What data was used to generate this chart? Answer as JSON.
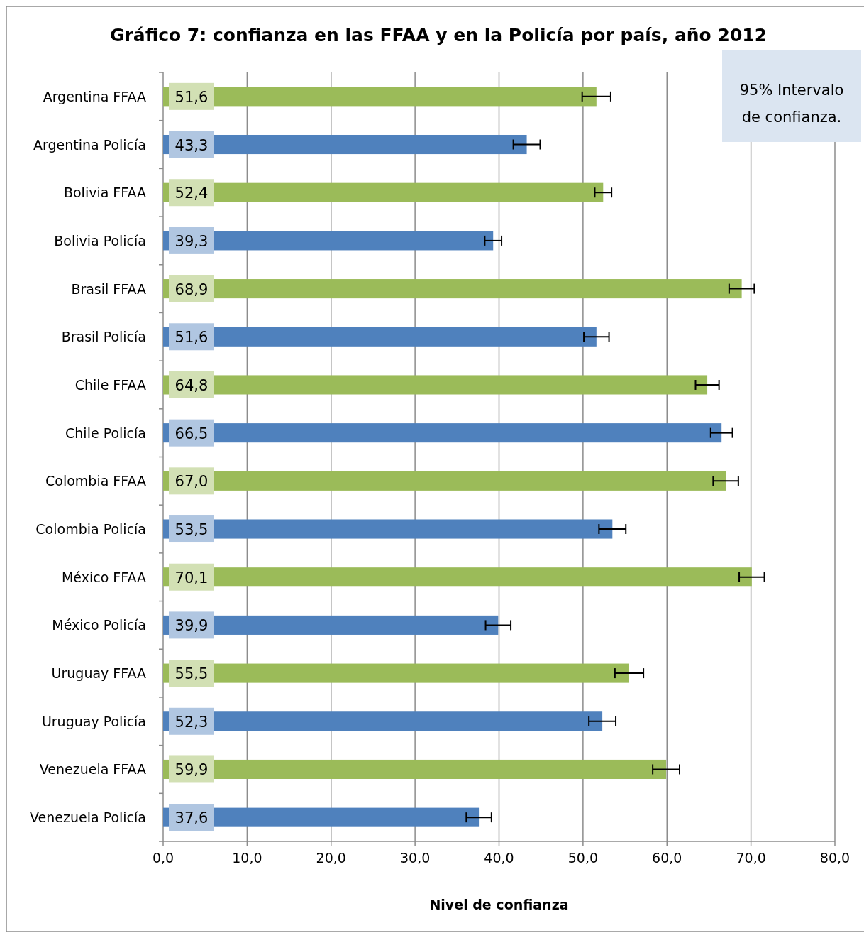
{
  "chart_data": {
    "type": "bar",
    "orientation": "horizontal",
    "title": "Gráfico 7: confianza en las FFAA y en la Policía por país, año 2012",
    "xlabel": "Nivel de confianza",
    "categories": [
      "Argentina FFAA",
      "Argentina Policía",
      "Bolivia FFAA",
      "Bolivia Policía",
      "Brasil FFAA",
      "Brasil Policía",
      "Chile FFAA",
      "Chile Policía",
      "Colombia FFAA",
      "Colombia Policía",
      "México FFAA",
      "México Policía",
      "Uruguay FFAA",
      "Uruguay Policía",
      "Venezuela FFAA",
      "Venezuela Policía"
    ],
    "values": [
      51.6,
      43.3,
      52.4,
      39.3,
      68.9,
      51.6,
      64.8,
      66.5,
      67.0,
      53.5,
      70.1,
      39.9,
      55.5,
      52.3,
      59.9,
      37.6
    ],
    "value_labels": [
      "51,6",
      "43,3",
      "52,4",
      "39,3",
      "68,9",
      "51,6",
      "64,8",
      "66,5",
      "67,0",
      "53,5",
      "70,1",
      "39,9",
      "55,5",
      "52,3",
      "59,9",
      "37,6"
    ],
    "errors": [
      1.7,
      1.6,
      1.0,
      1.0,
      1.5,
      1.5,
      1.4,
      1.3,
      1.5,
      1.6,
      1.5,
      1.5,
      1.7,
      1.6,
      1.6,
      1.5
    ],
    "colors": [
      "#9bbb59",
      "#4f81bd",
      "#9bbb59",
      "#4f81bd",
      "#9bbb59",
      "#4f81bd",
      "#9bbb59",
      "#4f81bd",
      "#9bbb59",
      "#4f81bd",
      "#9bbb59",
      "#4f81bd",
      "#9bbb59",
      "#4f81bd",
      "#9bbb59",
      "#4f81bd"
    ],
    "xlim": [
      0,
      80
    ],
    "xticks": [
      {
        "value": 0,
        "label": "0,0"
      },
      {
        "value": 10,
        "label": "10,0"
      },
      {
        "value": 20,
        "label": "20,0"
      },
      {
        "value": 30,
        "label": "30,0"
      },
      {
        "value": 40,
        "label": "40,0"
      },
      {
        "value": 50,
        "label": "50,0"
      },
      {
        "value": 60,
        "label": "60,0"
      },
      {
        "value": 70,
        "label": "70,0"
      },
      {
        "value": 80,
        "label": "80,0"
      }
    ],
    "grid": "x",
    "annotations": [
      "95% Intervalo de confianza."
    ]
  }
}
